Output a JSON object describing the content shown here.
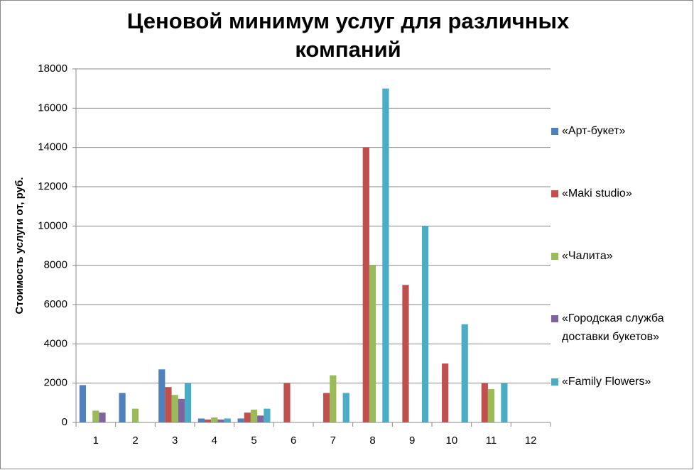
{
  "chart_data": {
    "type": "bar",
    "title": "Ценовой минимум услуг для различных компаний",
    "y_label": "Стоимость услуги от, руб.",
    "categories": [
      "1",
      "2",
      "3",
      "4",
      "5",
      "6",
      "7",
      "8",
      "9",
      "10",
      "11",
      "12"
    ],
    "series": [
      {
        "name": "«Арт-букет»",
        "color": "#4f81bd",
        "values": [
          1900,
          1500,
          2700,
          200,
          200,
          0,
          0,
          0,
          0,
          0,
          0,
          0
        ]
      },
      {
        "name": "«Maki studio»",
        "color": "#c0504d",
        "values": [
          0,
          0,
          1800,
          150,
          500,
          2000,
          1500,
          14000,
          7000,
          3000,
          2000,
          0
        ]
      },
      {
        "name": "«Чалита»",
        "color": "#9bbb59",
        "values": [
          600,
          700,
          1400,
          250,
          650,
          0,
          2400,
          8000,
          0,
          0,
          1700,
          0
        ]
      },
      {
        "name": "«Городская служба доставки букетов»",
        "color": "#8064a2",
        "values": [
          500,
          0,
          1200,
          150,
          350,
          0,
          0,
          0,
          0,
          0,
          0,
          0
        ]
      },
      {
        "name": "«Family Flowers»",
        "color": "#4bacc6",
        "values": [
          0,
          0,
          2000,
          200,
          700,
          0,
          1500,
          17000,
          10000,
          5000,
          2000,
          0
        ]
      }
    ],
    "ylim": [
      0,
      18000
    ],
    "yticks": [
      0,
      2000,
      4000,
      6000,
      8000,
      10000,
      12000,
      14000,
      16000,
      18000
    ],
    "grid": true
  }
}
